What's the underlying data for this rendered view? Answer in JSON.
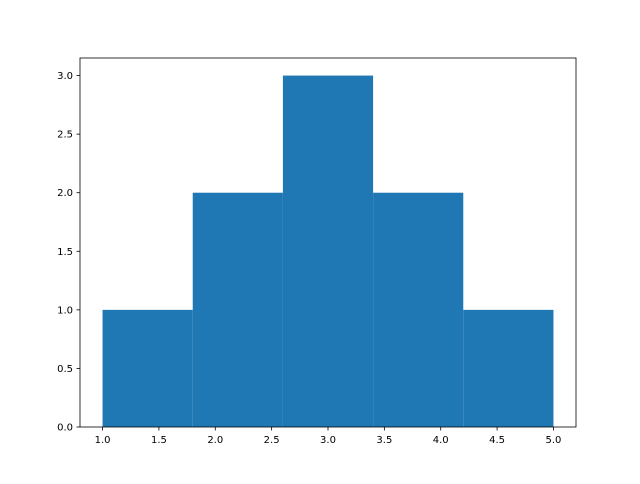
{
  "chart_data": {
    "type": "bar",
    "subtype": "histogram",
    "bin_edges": [
      1.0,
      1.8,
      2.6,
      3.4,
      4.2,
      5.0
    ],
    "values": [
      1,
      2,
      3,
      2,
      1
    ],
    "title": "",
    "xlabel": "",
    "ylabel": "",
    "xlim": [
      0.8,
      5.2
    ],
    "ylim": [
      0,
      3.15
    ],
    "xticks": [
      1.0,
      1.5,
      2.0,
      2.5,
      3.0,
      3.5,
      4.0,
      4.5,
      5.0
    ],
    "xtick_labels": [
      "1.0",
      "1.5",
      "2.0",
      "2.5",
      "3.0",
      "3.5",
      "4.0",
      "4.5",
      "5.0"
    ],
    "yticks": [
      0.0,
      0.5,
      1.0,
      1.5,
      2.0,
      2.5,
      3.0
    ],
    "ytick_labels": [
      "0.0",
      "0.5",
      "1.0",
      "1.5",
      "2.0",
      "2.5",
      "3.0"
    ],
    "grid": false,
    "bar_color": "#1f77b4"
  }
}
